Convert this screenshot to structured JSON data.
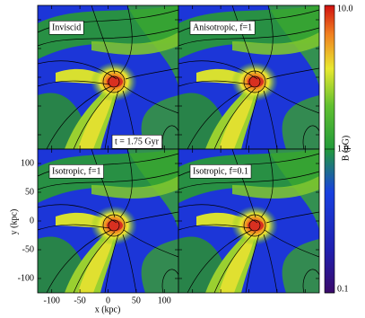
{
  "chart_data": {
    "type": "image-grid",
    "panels": [
      "Inviscid",
      "Anisotropic, f=1",
      "Isotropic, f=1",
      "Isotropic, f=0.1"
    ],
    "annotation": "t = 1.75 Gyr",
    "xlabel": "x (kpc)",
    "ylabel": "y (kpc)",
    "xlim": [
      -125,
      125
    ],
    "ylim": [
      -125,
      125
    ],
    "xticks": [
      -100,
      -50,
      0,
      50,
      100
    ],
    "yticks": [
      -100,
      -50,
      0,
      50,
      100
    ],
    "colorbar": {
      "label": "B (μG)",
      "log": true,
      "lim": [
        0.1,
        10
      ],
      "ticks": [
        {
          "value": 0.1,
          "label": "0.1"
        },
        {
          "value": 1,
          "label": "1.0"
        },
        {
          "value": 10,
          "label": "10.0"
        }
      ]
    }
  }
}
